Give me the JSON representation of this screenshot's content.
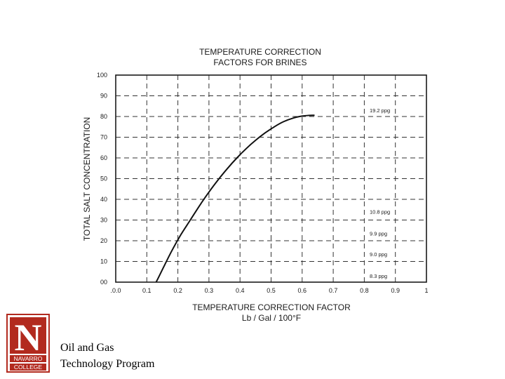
{
  "chart_data": {
    "type": "line",
    "title": [
      "TEMPERATURE CORRECTION",
      "FACTORS FOR BRINES"
    ],
    "xlabel": [
      "TEMPERATURE CORRECTION FACTOR",
      "Lb / Gal / 100°F"
    ],
    "ylabel": "TOTAL SALT CONCENTRATION",
    "xlim": [
      0,
      1
    ],
    "ylim": [
      0,
      100
    ],
    "x_ticks": [
      ".0.0",
      "0.1",
      "0.2",
      "0.3",
      "0.4",
      "0.5",
      "0.6",
      "0.7",
      "0.8",
      "0.9",
      "1"
    ],
    "y_ticks": [
      "00",
      "10",
      "20",
      "30",
      "40",
      "50",
      "60",
      "70",
      "80",
      "90",
      "100"
    ],
    "grid": true,
    "series": [
      {
        "x": [
          0.13,
          0.15,
          0.18,
          0.21,
          0.24,
          0.27,
          0.3,
          0.33,
          0.36,
          0.39,
          0.42,
          0.45,
          0.48,
          0.51,
          0.54,
          0.57,
          0.6,
          0.62,
          0.64
        ],
        "y": [
          0,
          6,
          15,
          23,
          30,
          37,
          43.5,
          49.5,
          55,
          60,
          64.5,
          68.5,
          72,
          75,
          77.5,
          79.2,
          80.2,
          80.5,
          80.6
        ]
      }
    ],
    "annotations": [
      {
        "text": "19.2 ppg",
        "y": 83
      },
      {
        "text": "10.8 ppg",
        "y": 34
      },
      {
        "text": "9.9 ppg",
        "y": 23.5
      },
      {
        "text": "9.0 ppg",
        "y": 13.5
      },
      {
        "text": "8.3 ppg",
        "y": 3
      }
    ]
  },
  "logo": {
    "letter": "N",
    "line1": "NAVARRO",
    "line2": "COLLEGE",
    "color": "#b22a1e"
  },
  "footer": {
    "line1": "Oil and Gas",
    "line2": "Technology Program"
  }
}
